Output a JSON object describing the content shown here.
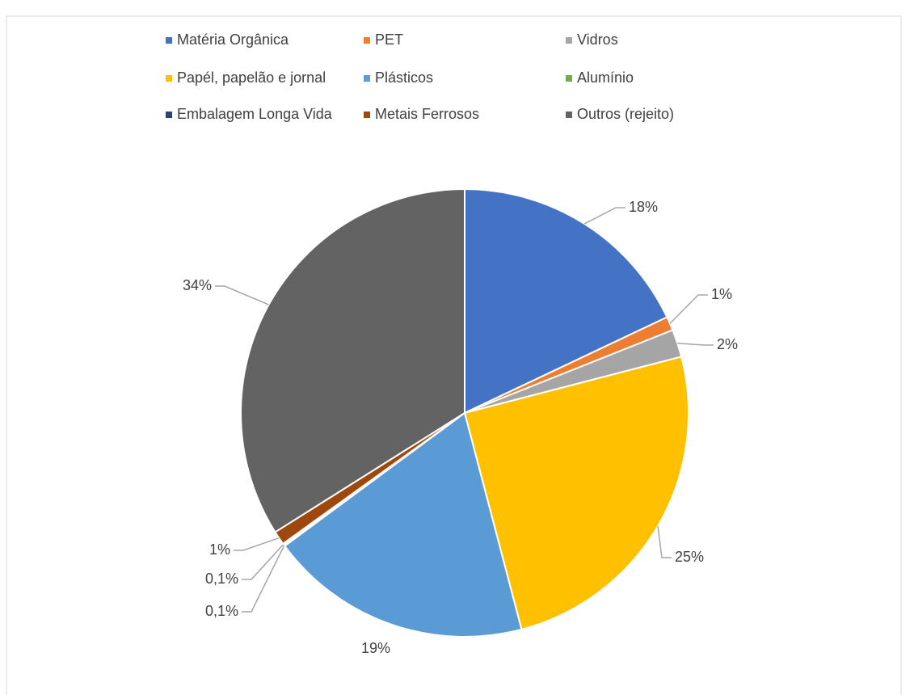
{
  "chart_data": {
    "type": "pie",
    "categories": [
      "Matéria Orgânica",
      "PET",
      "Vidros",
      "Papél, papelão e jornal",
      "Plásticos",
      "Alumínio",
      "Embalagem Longa Vida",
      "Metais Ferrosos",
      "Outros (rejeito)"
    ],
    "values": [
      18,
      1,
      2,
      25,
      19,
      0.1,
      0.1,
      1,
      34
    ],
    "value_labels": [
      "18%",
      "1%",
      "2%",
      "25%",
      "19%",
      "0,1%",
      "0,1%",
      "1%",
      "34%"
    ],
    "colors": [
      "#4472c4",
      "#ed7d31",
      "#a5a5a5",
      "#ffc000",
      "#5b9bd5",
      "#70ad47",
      "#264478",
      "#9e480e",
      "#636363"
    ],
    "legend": "top"
  }
}
